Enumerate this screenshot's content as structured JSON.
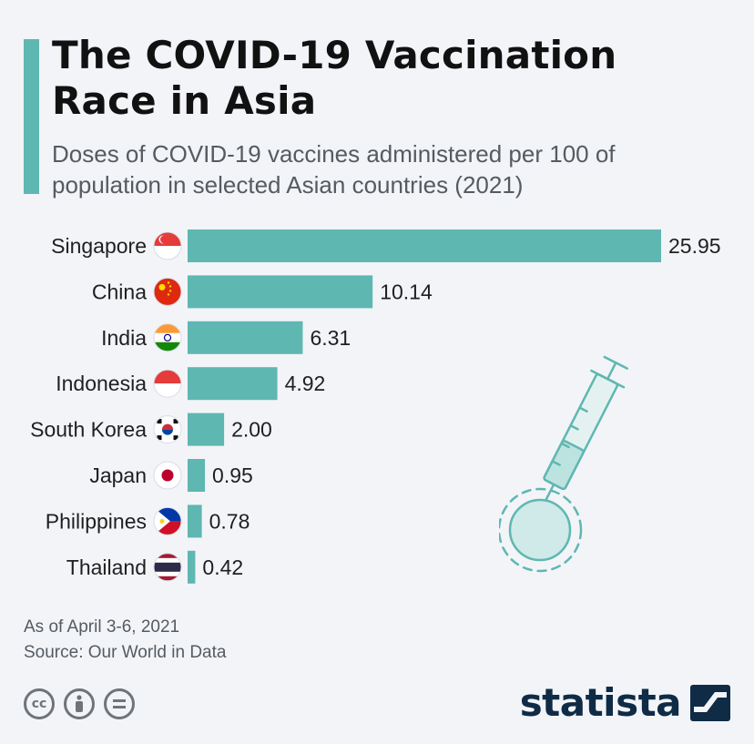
{
  "title": "The COVID-19 Vaccination Race in Asia",
  "subtitle": "Doses of COVID-19 vaccines administered per 100 of population in selected Asian countries (2021)",
  "footer": {
    "date_note": "As of April 3-6, 2021",
    "source": "Source: Our World in Data"
  },
  "license_icons": [
    "cc-icon",
    "attribution-icon",
    "no-derivatives-icon"
  ],
  "brand": {
    "name": "statista"
  },
  "colors": {
    "bar": "#5fb7b1",
    "accent": "#5fb7b1",
    "brand": "#0f2b46"
  },
  "chart_data": {
    "type": "bar",
    "orientation": "horizontal",
    "categories": [
      "Singapore",
      "China",
      "India",
      "Indonesia",
      "South Korea",
      "Japan",
      "Philippines",
      "Thailand"
    ],
    "values": [
      25.95,
      10.14,
      6.31,
      4.92,
      2.0,
      0.95,
      0.78,
      0.42
    ],
    "value_labels": [
      "25.95",
      "10.14",
      "6.31",
      "4.92",
      "2.00",
      "0.95",
      "0.78",
      "0.42"
    ],
    "flag_icons": [
      "singapore-flag-icon",
      "china-flag-icon",
      "india-flag-icon",
      "indonesia-flag-icon",
      "south-korea-flag-icon",
      "japan-flag-icon",
      "philippines-flag-icon",
      "thailand-flag-icon"
    ],
    "xlim": [
      0,
      25.95
    ],
    "grid": false,
    "legend": "none"
  }
}
